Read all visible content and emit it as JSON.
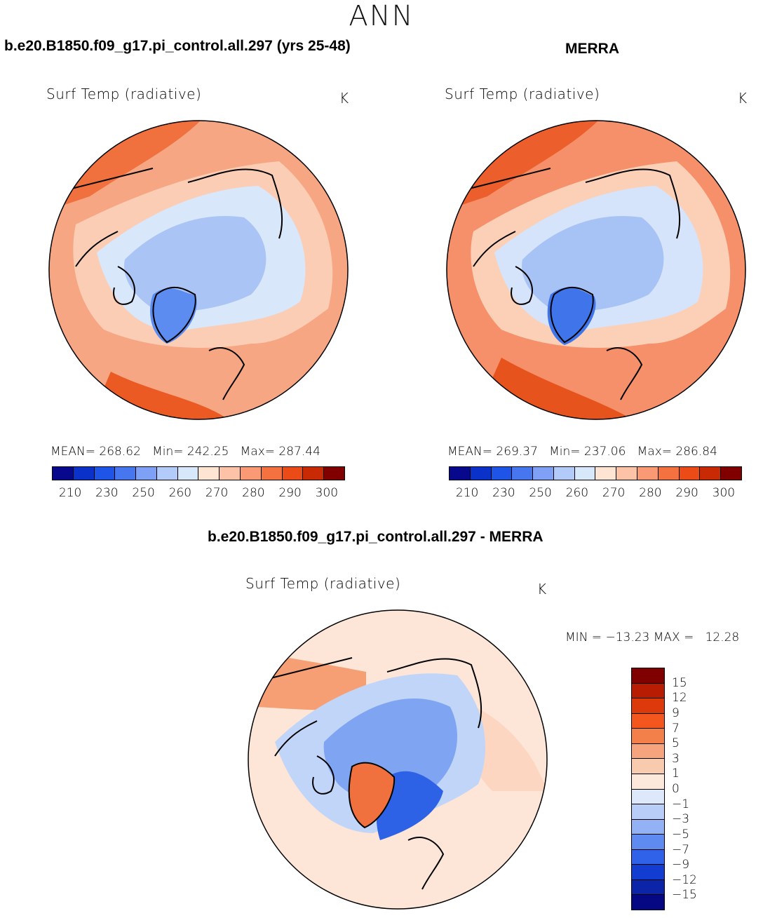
{
  "figure": {
    "season": "ANN"
  },
  "panels": {
    "model": {
      "title": "b.e20.B1850.f09_g17.pi_control.all.297 (yrs 25-48)",
      "variable": "Surf Temp (radiative)",
      "units": "K",
      "stats": "MEAN= 268.62   Min= 242.25   Max= 287.44"
    },
    "obs": {
      "title": "MERRA",
      "variable": "Surf Temp (radiative)",
      "units": "K",
      "stats": "MEAN= 269.37   Min= 237.06   Max= 286.84"
    },
    "diff": {
      "title": "b.e20.B1850.f09_g17.pi_control.all.297 - MERRA",
      "variable": "Surf Temp (radiative)",
      "units": "K",
      "stats": "MIN = −13.23 MAX =   12.28"
    }
  },
  "colorbars": {
    "absolute": {
      "colors": [
        "#08088c",
        "#0b32c8",
        "#1e55e6",
        "#4677ef",
        "#7fa1f5",
        "#b3cbf8",
        "#d8e8fb",
        "#fde4d3",
        "#fcc3a6",
        "#f99a74",
        "#f4723f",
        "#ea4b17",
        "#c92a06",
        "#800000"
      ],
      "ticks": [
        "210",
        "230",
        "250",
        "260",
        "270",
        "280",
        "290",
        "300"
      ]
    },
    "difference": {
      "colors": [
        "#800000",
        "#b81d04",
        "#dd3a0c",
        "#f4571d",
        "#f37f4b",
        "#f5a47d",
        "#f8cbaf",
        "#fde9dc",
        "#dde9fb",
        "#b8cef8",
        "#92b2f5",
        "#5f8bf0",
        "#2f62e8",
        "#123dd0",
        "#0b24a8",
        "#060883"
      ],
      "ticks": [
        "15",
        "12",
        "9",
        "7",
        "5",
        "3",
        "1",
        "0",
        "−1",
        "−3",
        "−5",
        "−7",
        "−9",
        "−12",
        "−15"
      ]
    }
  },
  "map_fields": {
    "model": {
      "ocean": "#f7a683",
      "warm": "#f0703e",
      "mid": "#fbcdb5",
      "cold": "#d9e7fa",
      "colder": "#a9c4f5",
      "coldest": "#5c8cf0"
    },
    "obs": {
      "ocean": "#f6906a",
      "warm": "#ec5f2c",
      "mid": "#fbd0b7",
      "cold": "#d5e4fa",
      "colder": "#a7c2f4",
      "coldest": "#3f74ea"
    },
    "diff": {
      "ocean": "#fde6d7",
      "warm": "#f79f74",
      "mid": "#fcd6c0",
      "cold": "#c1d5f8",
      "colder": "#7ea4f2",
      "coldest": "#2d62e6",
      "greenland": "#f0703e"
    }
  }
}
